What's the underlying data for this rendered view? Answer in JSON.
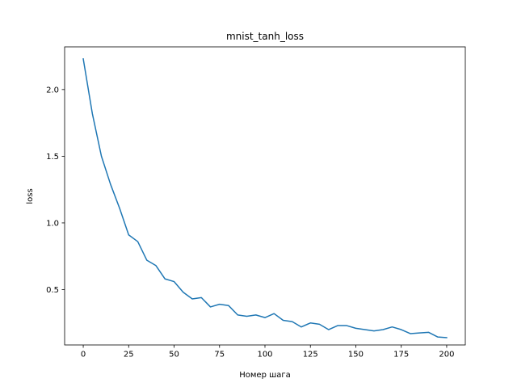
{
  "chart_data": {
    "type": "line",
    "title": "mnist_tanh_loss",
    "xlabel": "Номер шага",
    "ylabel": "loss",
    "xlim": [
      -10.25,
      210.25
    ],
    "ylim": [
      0.085,
      2.32
    ],
    "xticks": [
      0,
      25,
      50,
      75,
      100,
      125,
      150,
      175,
      200
    ],
    "yticks": [
      0.5,
      1.0,
      1.5,
      2.0
    ],
    "xtick_labels": [
      "0",
      "25",
      "50",
      "75",
      "100",
      "125",
      "150",
      "175",
      "200"
    ],
    "ytick_labels": [
      "0.5",
      "1.0",
      "1.5",
      "2.0"
    ],
    "grid": false,
    "legend": false,
    "series": [
      {
        "color": "#1f77b4",
        "x": [
          0,
          5,
          10,
          15,
          20,
          25,
          30,
          35,
          40,
          45,
          50,
          55,
          60,
          65,
          70,
          75,
          80,
          85,
          90,
          95,
          100,
          105,
          110,
          115,
          120,
          125,
          130,
          135,
          140,
          145,
          150,
          155,
          160,
          165,
          170,
          175,
          180,
          185,
          190,
          195,
          200
        ],
        "y": [
          2.23,
          1.82,
          1.5,
          1.29,
          1.11,
          0.91,
          0.86,
          0.72,
          0.68,
          0.58,
          0.56,
          0.48,
          0.43,
          0.44,
          0.37,
          0.39,
          0.38,
          0.31,
          0.3,
          0.31,
          0.29,
          0.32,
          0.27,
          0.26,
          0.22,
          0.25,
          0.24,
          0.2,
          0.23,
          0.23,
          0.21,
          0.2,
          0.19,
          0.2,
          0.22,
          0.2,
          0.17,
          0.175,
          0.18,
          0.145,
          0.14
        ]
      }
    ]
  }
}
